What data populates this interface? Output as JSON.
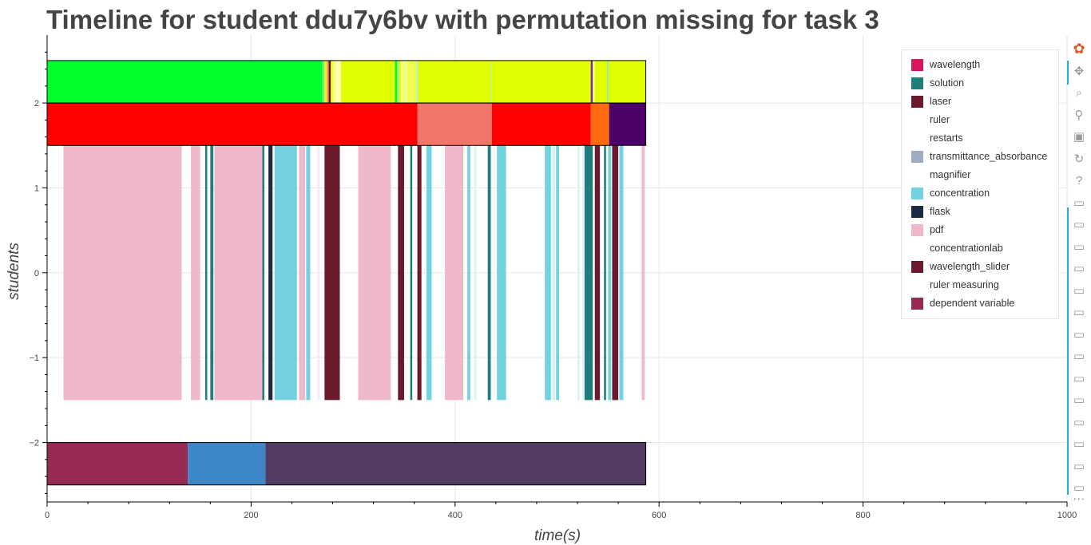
{
  "chart_data": {
    "type": "timeline",
    "title": "Timeline for student ddu7y6bv with permutation missing for task 3",
    "xlabel": "time(s)",
    "ylabel": "students",
    "xlim": [
      0,
      1000
    ],
    "ylim": [
      -2.7,
      2.8
    ],
    "xticks": [
      0,
      200,
      400,
      600,
      800,
      1000
    ],
    "xtick_labels": [
      "0",
      "200",
      "400",
      "600",
      "800",
      "1000"
    ],
    "yticks": [
      -2,
      -1,
      0,
      1,
      2
    ],
    "ytick_labels": [
      "−2",
      "−1",
      "0",
      "1",
      "2"
    ],
    "grid": true,
    "legend_position": "top-right",
    "legend": [
      {
        "label": "wavelength",
        "color": "#d6175f"
      },
      {
        "label": "solution",
        "color": "#1f7d7a"
      },
      {
        "label": "laser",
        "color": "#6b1a2d"
      },
      {
        "label": "ruler",
        "color": "#ffffff"
      },
      {
        "label": "restarts",
        "color": "#ffffff"
      },
      {
        "label": "transmittance_absorbance",
        "color": "#9eaec0"
      },
      {
        "label": "magnifier",
        "color": "#ffffff"
      },
      {
        "label": "concentration",
        "color": "#74d2e0"
      },
      {
        "label": "flask",
        "color": "#1b2b44"
      },
      {
        "label": "pdf",
        "color": "#efb8cb"
      },
      {
        "label": "concentrationlab",
        "color": "#ffffff"
      },
      {
        "label": "wavelength_slider",
        "color": "#6b1a2d"
      },
      {
        "label": "ruler measuring",
        "color": "#ffffff"
      },
      {
        "label": "dependent variable",
        "color": "#962a54"
      }
    ],
    "rows": [
      {
        "y_range": [
          2.0,
          2.5
        ],
        "outline": true,
        "segments": [
          {
            "x0": 0,
            "x1": 270,
            "color": "#00ff2c"
          },
          {
            "x0": 270,
            "x1": 272,
            "color": "#7fe87a"
          },
          {
            "x0": 272,
            "x1": 274,
            "color": "#e0ff00"
          },
          {
            "x0": 274,
            "x1": 276,
            "color": "#ff9a6a"
          },
          {
            "x0": 276,
            "x1": 278,
            "color": "#6b1a2d"
          },
          {
            "x0": 278,
            "x1": 280,
            "color": "#e0ff00"
          },
          {
            "x0": 280,
            "x1": 284,
            "color": "#f9ff90"
          },
          {
            "x0": 284,
            "x1": 288,
            "color": "#fbffb8"
          },
          {
            "x0": 288,
            "x1": 341,
            "color": "#e0ff00"
          },
          {
            "x0": 341,
            "x1": 343,
            "color": "#00ff2c"
          },
          {
            "x0": 343,
            "x1": 345,
            "color": "#9ef08a"
          },
          {
            "x0": 345,
            "x1": 347,
            "color": "#e0ff00"
          },
          {
            "x0": 347,
            "x1": 353,
            "color": "#f5ff80"
          },
          {
            "x0": 353,
            "x1": 362,
            "color": "#ecff50"
          },
          {
            "x0": 362,
            "x1": 364,
            "color": "#c8f0a0"
          },
          {
            "x0": 364,
            "x1": 435,
            "color": "#e0ff00"
          },
          {
            "x0": 435,
            "x1": 436,
            "color": "#b8f0a0"
          },
          {
            "x0": 436,
            "x1": 533,
            "color": "#e0ff00"
          },
          {
            "x0": 533,
            "x1": 535,
            "color": "#7b2a9a"
          },
          {
            "x0": 535,
            "x1": 537,
            "color": "#f5ff80"
          },
          {
            "x0": 537,
            "x1": 549,
            "color": "#e0ff00"
          },
          {
            "x0": 549,
            "x1": 551,
            "color": "#9ef08a"
          },
          {
            "x0": 551,
            "x1": 587,
            "color": "#e0ff00"
          }
        ]
      },
      {
        "y_range": [
          1.5,
          2.0
        ],
        "outline": true,
        "segments": [
          {
            "x0": 0,
            "x1": 363,
            "color": "#ff0000"
          },
          {
            "x0": 363,
            "x1": 436,
            "color": "#f0756a"
          },
          {
            "x0": 436,
            "x1": 533,
            "color": "#ff0000"
          },
          {
            "x0": 533,
            "x1": 551,
            "color": "#ff6a10"
          },
          {
            "x0": 551,
            "x1": 587,
            "color": "#4b0068"
          }
        ]
      },
      {
        "y_range": [
          -1.5,
          1.5
        ],
        "outline": false,
        "segments": [
          {
            "x0": 16,
            "x1": 132,
            "color": "#efb8cb"
          },
          {
            "x0": 141,
            "x1": 150,
            "color": "#efb8cb"
          },
          {
            "x0": 155,
            "x1": 157,
            "color": "#1f7d7a"
          },
          {
            "x0": 160,
            "x1": 163,
            "color": "#1f7d7a"
          },
          {
            "x0": 164,
            "x1": 211,
            "color": "#efb8cb"
          },
          {
            "x0": 211,
            "x1": 213,
            "color": "#1f7d7a"
          },
          {
            "x0": 217,
            "x1": 221,
            "color": "#1b2b44"
          },
          {
            "x0": 223,
            "x1": 245,
            "color": "#74d2e0"
          },
          {
            "x0": 247,
            "x1": 253,
            "color": "#efb8cb"
          },
          {
            "x0": 254,
            "x1": 258,
            "color": "#74d2e0"
          },
          {
            "x0": 265,
            "x1": 267,
            "color": "#fbeaf0"
          },
          {
            "x0": 272,
            "x1": 287,
            "color": "#6b1a2d"
          },
          {
            "x0": 305,
            "x1": 337,
            "color": "#efb8cb"
          },
          {
            "x0": 344,
            "x1": 350,
            "color": "#6b1a2d"
          },
          {
            "x0": 356,
            "x1": 358,
            "color": "#1f7d7a"
          },
          {
            "x0": 363,
            "x1": 367,
            "color": "#6b1a2d"
          },
          {
            "x0": 372,
            "x1": 377,
            "color": "#74d2e0"
          },
          {
            "x0": 390,
            "x1": 408,
            "color": "#efb8cb"
          },
          {
            "x0": 412,
            "x1": 415,
            "color": "#74d2e0"
          },
          {
            "x0": 419,
            "x1": 421,
            "color": "#d8f2f6"
          },
          {
            "x0": 432,
            "x1": 435,
            "color": "#1f7d7a"
          },
          {
            "x0": 441,
            "x1": 450,
            "color": "#74d2e0"
          },
          {
            "x0": 488,
            "x1": 494,
            "color": "#74d2e0"
          },
          {
            "x0": 495,
            "x1": 498,
            "color": "#d8f2f6"
          },
          {
            "x0": 499,
            "x1": 502,
            "color": "#74d2e0"
          },
          {
            "x0": 520,
            "x1": 522,
            "color": "#d8f2f6"
          },
          {
            "x0": 525,
            "x1": 527,
            "color": "#d8f2f6"
          },
          {
            "x0": 527,
            "x1": 535,
            "color": "#1f7d7a"
          },
          {
            "x0": 537,
            "x1": 542,
            "color": "#6b1a2d"
          },
          {
            "x0": 546,
            "x1": 548,
            "color": "#1f7d7a"
          },
          {
            "x0": 550,
            "x1": 553,
            "color": "#74d2e0"
          },
          {
            "x0": 554,
            "x1": 560,
            "color": "#6b1a2d"
          },
          {
            "x0": 561,
            "x1": 565,
            "color": "#74d2e0"
          },
          {
            "x0": 583,
            "x1": 586,
            "color": "#efb8cb"
          }
        ]
      },
      {
        "y_range": [
          -2.5,
          -2.0
        ],
        "outline": true,
        "segments": [
          {
            "x0": 0,
            "x1": 138,
            "color": "#962a54"
          },
          {
            "x0": 138,
            "x1": 214,
            "color": "#3d87c7"
          },
          {
            "x0": 214,
            "x1": 587,
            "color": "#513b62"
          }
        ]
      }
    ]
  },
  "toolbar": {
    "tools": [
      {
        "name": "bokeh-logo-icon",
        "glyph": "✿"
      },
      {
        "name": "pan-icon",
        "glyph": "✥"
      },
      {
        "name": "box-zoom-icon",
        "glyph": "⌕"
      },
      {
        "name": "wheel-zoom-icon",
        "glyph": "⚲"
      },
      {
        "name": "save-icon",
        "glyph": "▣"
      },
      {
        "name": "reset-icon",
        "glyph": "↻"
      },
      {
        "name": "help-icon",
        "glyph": "?"
      },
      {
        "name": "hover-icon",
        "glyph": "▭"
      },
      {
        "name": "hover-icon",
        "glyph": "▭"
      },
      {
        "name": "hover-icon",
        "glyph": "▭"
      },
      {
        "name": "hover-icon",
        "glyph": "▭"
      },
      {
        "name": "hover-icon",
        "glyph": "▭"
      },
      {
        "name": "hover-icon",
        "glyph": "▭"
      },
      {
        "name": "hover-icon",
        "glyph": "▭"
      },
      {
        "name": "hover-icon",
        "glyph": "▭"
      },
      {
        "name": "hover-icon",
        "glyph": "▭"
      },
      {
        "name": "hover-icon",
        "glyph": "▭"
      },
      {
        "name": "hover-icon",
        "glyph": "▭"
      },
      {
        "name": "hover-icon",
        "glyph": "▭"
      },
      {
        "name": "hover-icon",
        "glyph": "▭"
      },
      {
        "name": "hover-icon",
        "glyph": "▭"
      },
      {
        "name": "more-icon",
        "glyph": "⋯"
      }
    ]
  }
}
